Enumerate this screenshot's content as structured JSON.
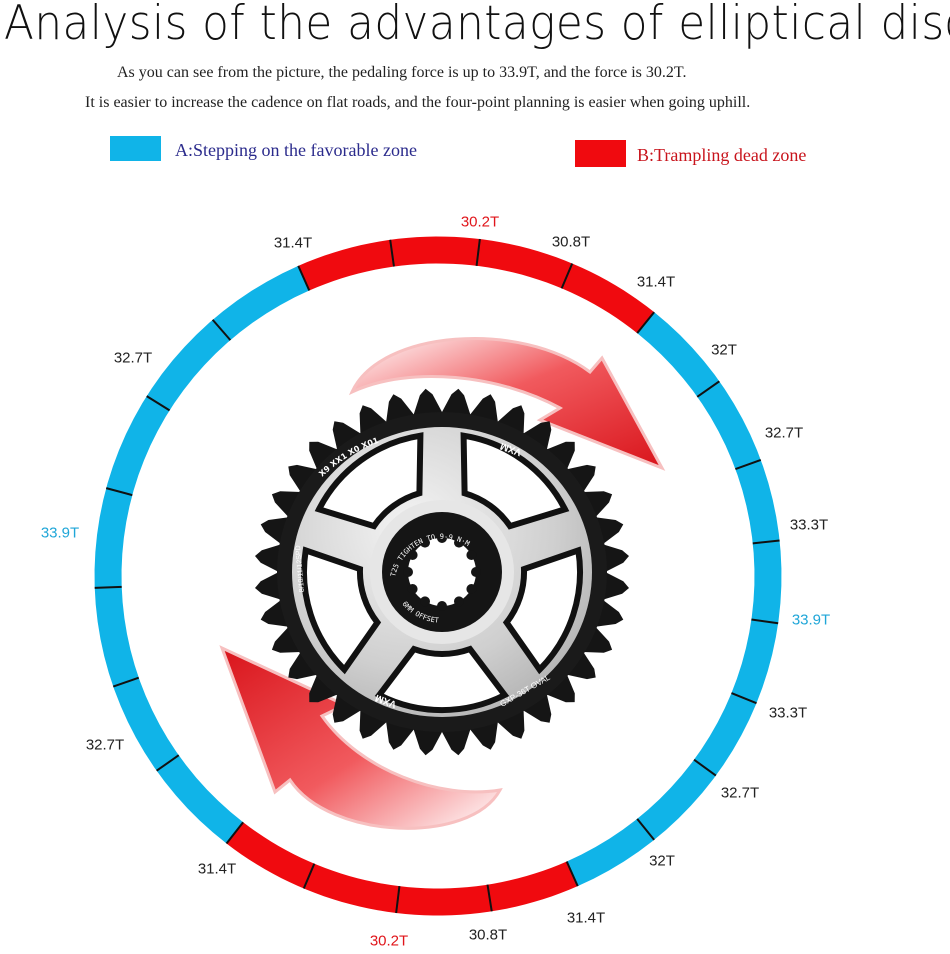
{
  "title": "Analysis of the advantages of elliptical discs",
  "subtitle_lines": [
    "As you can see from the picture, the pedaling force is up to 33.9T, and the force is 30.2T.",
    "It is easier to increase the cadence on flat roads, and the four-point planning is easier when going uphill."
  ],
  "legend": {
    "a": {
      "label": "A:Stepping on the favorable zone",
      "color": "#10b4e8"
    },
    "b": {
      "label": "B:Trampling dead zone",
      "color": "#f00a0f"
    }
  },
  "ring_labels": [
    {
      "text": "30.2T",
      "tone": "red"
    },
    {
      "text": "30.8T",
      "tone": "dark"
    },
    {
      "text": "31.4T",
      "tone": "dark"
    },
    {
      "text": "32T",
      "tone": "dark"
    },
    {
      "text": "32.7T",
      "tone": "dark"
    },
    {
      "text": "33.3T",
      "tone": "dark"
    },
    {
      "text": "33.9T",
      "tone": "blue"
    },
    {
      "text": "33.3T",
      "tone": "dark"
    },
    {
      "text": "32.7T",
      "tone": "dark"
    },
    {
      "text": "32T",
      "tone": "dark"
    },
    {
      "text": "31.4T",
      "tone": "dark"
    },
    {
      "text": "30.8T",
      "tone": "dark"
    },
    {
      "text": "30.2T",
      "tone": "red"
    },
    {
      "text": "31.4T",
      "tone": "dark"
    },
    {
      "text": "32.7T",
      "tone": "dark"
    },
    {
      "text": "33.9T",
      "tone": "blue"
    },
    {
      "text": "32.7T",
      "tone": "dark"
    },
    {
      "text": "31.4T",
      "tone": "dark"
    }
  ],
  "chainring_markings": {
    "compat": "X9 XX1 X0 X01",
    "brand": "VXM",
    "torque": "T25 TIGHTEN TO 9-9 N·M",
    "offset": "6MM OFFSET",
    "model": "GXP-36T  OVAL",
    "speeds": "8/10/11/12SPD"
  },
  "colors": {
    "favorable": "#10b4e8",
    "dead": "#f00a0f",
    "arrow": "#e8262b"
  }
}
